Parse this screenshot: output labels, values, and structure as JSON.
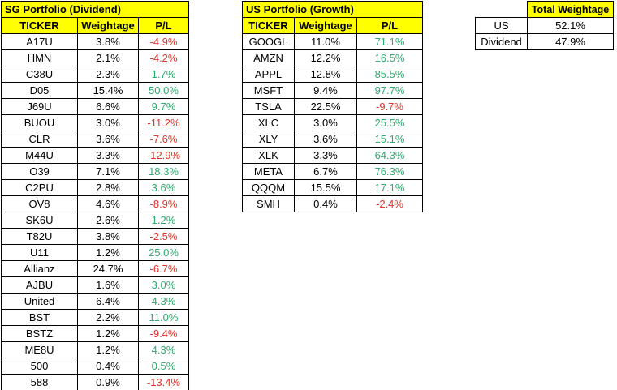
{
  "colors": {
    "header_bg": "#ffff00",
    "positive": "#2eab6e",
    "negative": "#e0332c",
    "border": "#000000"
  },
  "sg": {
    "title": "SG Portfolio (Dividend)",
    "headers": [
      "TICKER",
      "Weightage",
      "P/L"
    ],
    "rows": [
      [
        "A17U",
        "3.8%",
        "-4.9%"
      ],
      [
        "HMN",
        "2.1%",
        "-4.2%"
      ],
      [
        "C38U",
        "2.3%",
        "1.7%"
      ],
      [
        "D05",
        "15.4%",
        "50.0%"
      ],
      [
        "J69U",
        "6.6%",
        "9.7%"
      ],
      [
        "BUOU",
        "3.0%",
        "-11.2%"
      ],
      [
        "CLR",
        "3.6%",
        "-7.6%"
      ],
      [
        "M44U",
        "3.3%",
        "-12.9%"
      ],
      [
        "O39",
        "7.1%",
        "18.3%"
      ],
      [
        "C2PU",
        "2.8%",
        "3.6%"
      ],
      [
        "OV8",
        "4.6%",
        "-8.9%"
      ],
      [
        "SK6U",
        "2.6%",
        "1.2%"
      ],
      [
        "T82U",
        "3.8%",
        "-2.5%"
      ],
      [
        "U11",
        "1.2%",
        "25.0%"
      ],
      [
        "Allianz",
        "24.7%",
        "-6.7%"
      ],
      [
        "AJBU",
        "1.6%",
        "3.0%"
      ],
      [
        "United",
        "6.4%",
        "4.3%"
      ],
      [
        "BST",
        "2.2%",
        "11.0%"
      ],
      [
        "BSTZ",
        "1.2%",
        "-9.4%"
      ],
      [
        "ME8U",
        "1.2%",
        "4.3%"
      ],
      [
        "500",
        "0.4%",
        "0.5%"
      ],
      [
        "588",
        "0.9%",
        "-13.4%"
      ]
    ]
  },
  "us": {
    "title": "US Portfolio (Growth)",
    "headers": [
      "TICKER",
      "Weightage",
      "P/L"
    ],
    "rows": [
      [
        "GOOGL",
        "11.0%",
        "71.1%"
      ],
      [
        "AMZN",
        "12.2%",
        "16.5%"
      ],
      [
        "APPL",
        "12.8%",
        "85.5%"
      ],
      [
        "MSFT",
        "9.4%",
        "97.7%"
      ],
      [
        "TSLA",
        "22.5%",
        "-9.7%"
      ],
      [
        "XLC",
        "3.0%",
        "25.5%"
      ],
      [
        "XLY",
        "3.6%",
        "15.1%"
      ],
      [
        "XLK",
        "3.3%",
        "64.3%"
      ],
      [
        "META",
        "6.7%",
        "76.3%"
      ],
      [
        "QQQM",
        "15.5%",
        "17.1%"
      ],
      [
        "SMH",
        "0.4%",
        "-2.4%"
      ]
    ]
  },
  "total": {
    "title": "Total Weightage",
    "rows": [
      [
        "US",
        "52.1%"
      ],
      [
        "Dividend",
        "47.9%"
      ]
    ]
  }
}
